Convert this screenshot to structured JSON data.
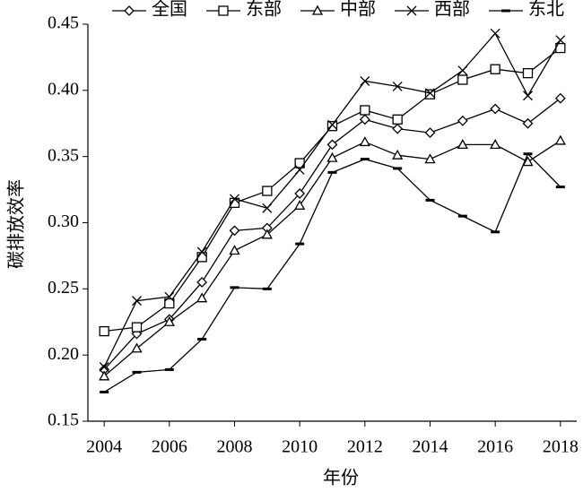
{
  "chart_data": {
    "type": "line",
    "xlabel": "年份",
    "ylabel": "碳排放效率",
    "x": [
      2004,
      2005,
      2006,
      2007,
      2008,
      2009,
      2010,
      2011,
      2012,
      2013,
      2014,
      2015,
      2016,
      2017,
      2018
    ],
    "xlim": [
      2003.5,
      2018.5
    ],
    "xticks": [
      2004,
      2006,
      2008,
      2010,
      2012,
      2014,
      2016,
      2018
    ],
    "ylim": [
      0.15,
      0.45
    ],
    "yticks": [
      {
        "value": 0.15,
        "label": "0.15"
      },
      {
        "value": 0.2,
        "label": "0.20"
      },
      {
        "value": 0.25,
        "label": "0.25"
      },
      {
        "value": 0.3,
        "label": "0.30"
      },
      {
        "value": 0.35,
        "label": "0.35"
      },
      {
        "value": 0.4,
        "label": "0.40"
      },
      {
        "value": 0.45,
        "label": "0.45"
      }
    ],
    "legend": "top",
    "series": [
      {
        "name": "全国",
        "color": "#000000",
        "marker": "diamond",
        "values": [
          0.189,
          0.216,
          0.227,
          0.255,
          0.294,
          0.296,
          0.322,
          0.359,
          0.378,
          0.371,
          0.368,
          0.377,
          0.386,
          0.375,
          0.394
        ]
      },
      {
        "name": "东部",
        "color": "#000000",
        "marker": "square",
        "values": [
          0.218,
          0.221,
          0.239,
          0.274,
          0.315,
          0.324,
          0.345,
          0.373,
          0.385,
          0.378,
          0.397,
          0.408,
          0.416,
          0.413,
          0.432
        ]
      },
      {
        "name": "中部",
        "color": "#000000",
        "marker": "triangle",
        "values": [
          0.184,
          0.205,
          0.225,
          0.243,
          0.279,
          0.291,
          0.313,
          0.349,
          0.361,
          0.351,
          0.348,
          0.359,
          0.359,
          0.346,
          0.362
        ]
      },
      {
        "name": "西部",
        "color": "#000000",
        "marker": "x",
        "values": [
          0.191,
          0.241,
          0.244,
          0.278,
          0.318,
          0.311,
          0.34,
          0.374,
          0.407,
          0.403,
          0.398,
          0.415,
          0.443,
          0.396,
          0.438
        ]
      },
      {
        "name": "东北",
        "color": "#000000",
        "marker": "dash",
        "values": [
          0.172,
          0.187,
          0.189,
          0.212,
          0.251,
          0.25,
          0.284,
          0.338,
          0.348,
          0.341,
          0.317,
          0.305,
          0.293,
          0.352,
          0.327
        ]
      }
    ]
  }
}
